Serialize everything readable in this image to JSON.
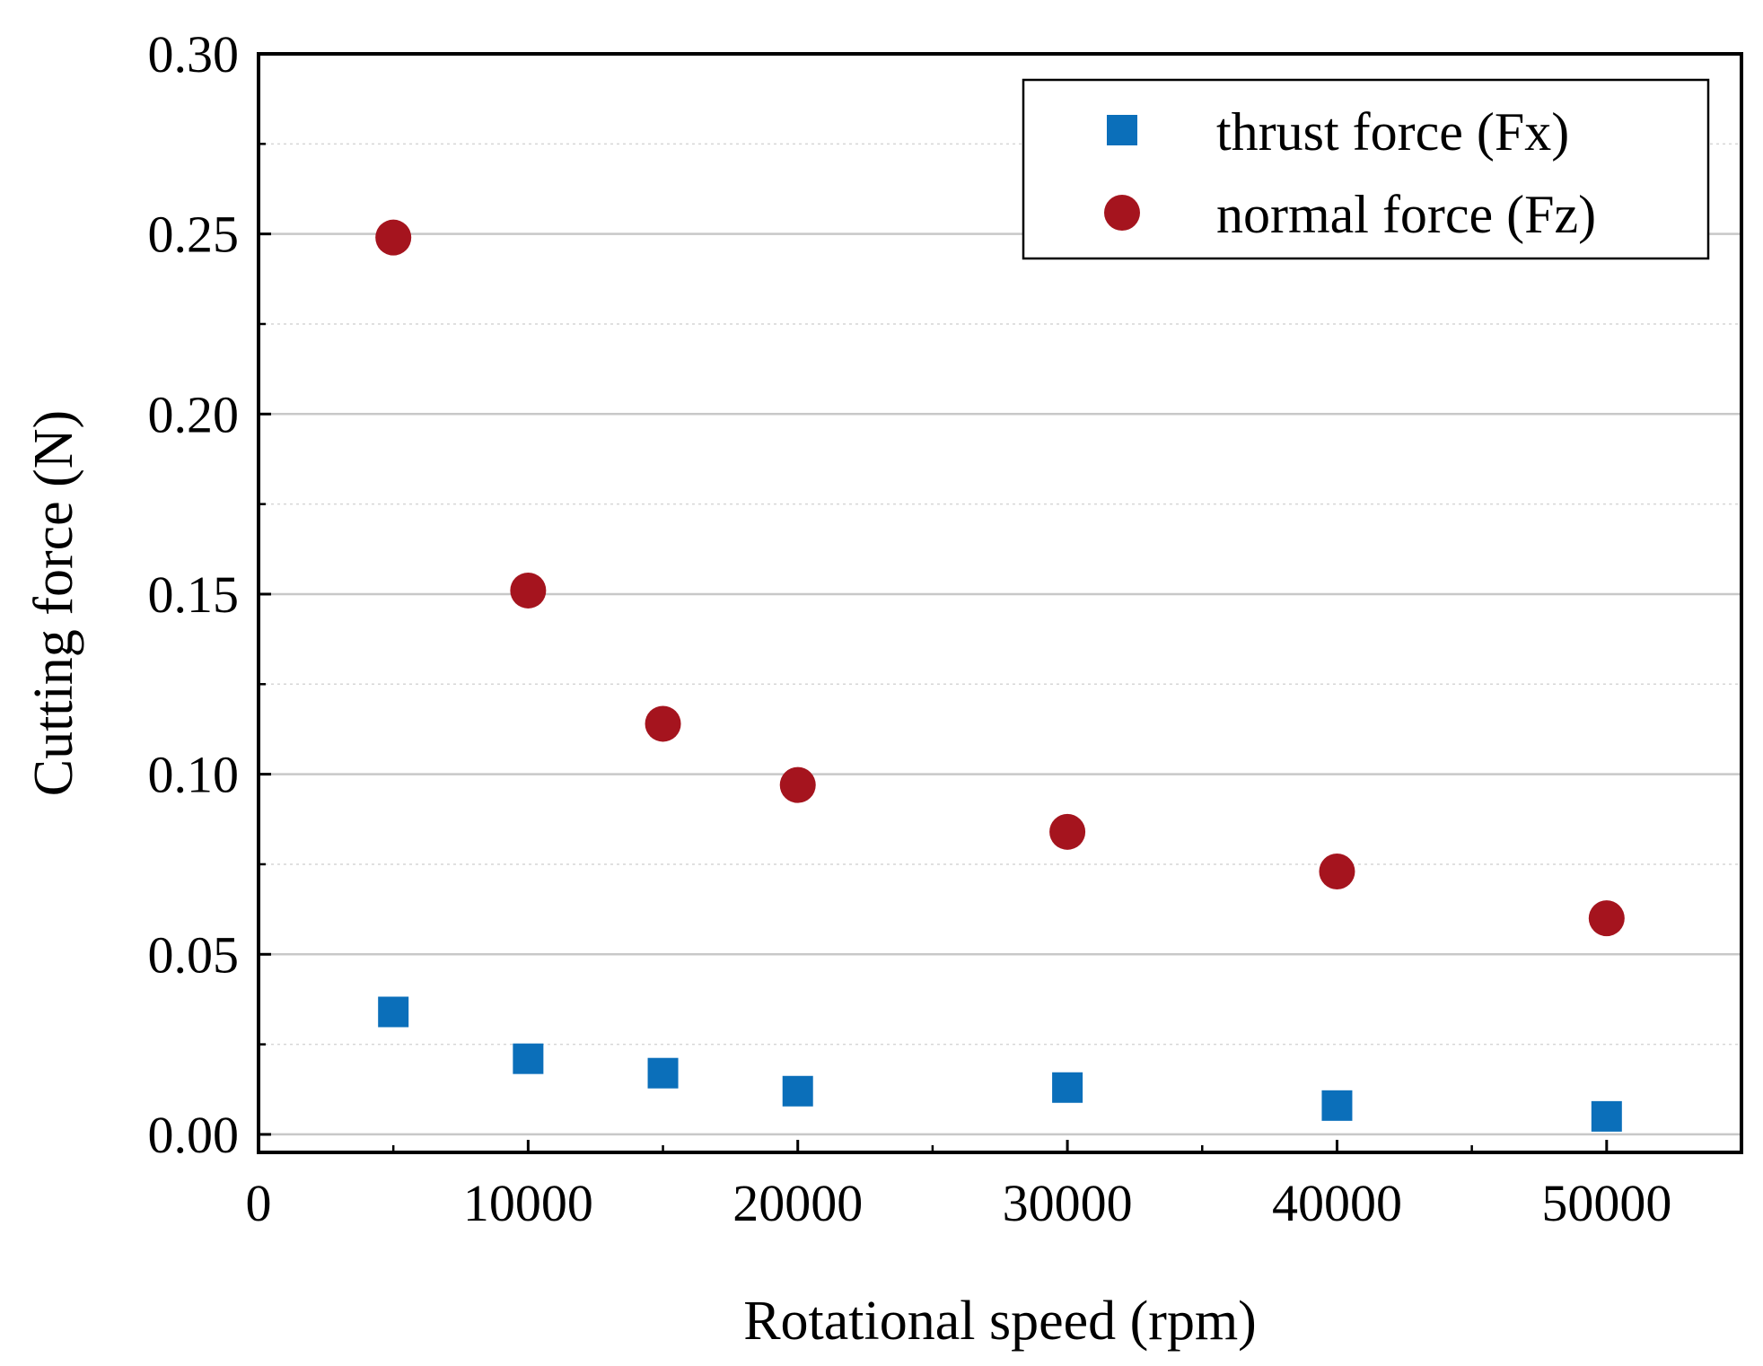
{
  "chart_data": {
    "type": "scatter",
    "title": "",
    "xlabel": "Rotational speed (rpm)",
    "ylabel": "Cutting force (N)",
    "xlim": [
      0,
      55000
    ],
    "ylim": [
      -0.005,
      0.3
    ],
    "xticks": [
      0,
      10000,
      20000,
      30000,
      40000,
      50000
    ],
    "xtick_labels": [
      "0",
      "10000",
      "20000",
      "30000",
      "40000",
      "50000"
    ],
    "xminor": [
      5000,
      15000,
      25000,
      35000,
      45000
    ],
    "yticks": [
      0,
      0.05,
      0.1,
      0.15,
      0.2,
      0.25,
      0.3
    ],
    "ytick_labels": [
      "0.00",
      "0.05",
      "0.10",
      "0.15",
      "0.20",
      "0.25",
      "0.30"
    ],
    "yminor": [
      0.025,
      0.075,
      0.125,
      0.175,
      0.225,
      0.275
    ],
    "grid": true,
    "legend_position": "top-right",
    "series": [
      {
        "name": "thrust force (Fx)",
        "marker": "square",
        "color": "#0b6fba",
        "x": [
          5000,
          10000,
          15000,
          20000,
          30000,
          40000,
          50000
        ],
        "y": [
          0.034,
          0.021,
          0.017,
          0.012,
          0.013,
          0.008,
          0.005
        ]
      },
      {
        "name": "normal force (Fz)",
        "marker": "circle",
        "color": "#a5141e",
        "x": [
          5000,
          10000,
          15000,
          20000,
          30000,
          40000,
          50000
        ],
        "y": [
          0.249,
          0.151,
          0.114,
          0.097,
          0.084,
          0.073,
          0.06
        ]
      }
    ]
  }
}
